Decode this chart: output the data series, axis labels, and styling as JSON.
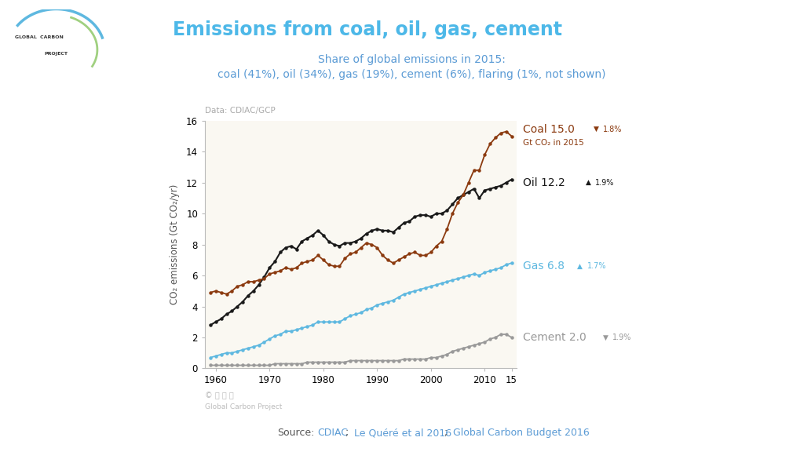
{
  "title": "Emissions from coal, oil, gas, cement",
  "subtitle_line1": "Share of global emissions in 2015:",
  "subtitle_line2": "coal (41%), oil (34%), gas (19%), cement (6%), flaring (1%, not shown)",
  "data_source_label": "Data: CDIAC/GCP",
  "ylabel": "CO₂ emissions (Gt CO₂/yr)",
  "bg_color": "#faf8f2",
  "title_color": "#4db8e8",
  "subtitle_color": "#5b9bd5",
  "coal_color": "#8B3A0F",
  "oil_color": "#1a1a1a",
  "gas_color": "#5eb8e0",
  "cement_color": "#999999",
  "source_label_color": "#555555",
  "source_link_color": "#5b9bd5",
  "xlim": [
    1958,
    2016
  ],
  "ylim": [
    0,
    16
  ],
  "yticks": [
    0,
    2,
    4,
    6,
    8,
    10,
    12,
    14,
    16
  ],
  "xticks": [
    1960,
    1970,
    1980,
    1990,
    2000,
    2010,
    2015
  ],
  "xtick_labels": [
    "1960",
    "1970",
    "1980",
    "1990",
    "2000",
    "2010",
    "15"
  ],
  "coal_data_years": [
    1959,
    1960,
    1961,
    1962,
    1963,
    1964,
    1965,
    1966,
    1967,
    1968,
    1969,
    1970,
    1971,
    1972,
    1973,
    1974,
    1975,
    1976,
    1977,
    1978,
    1979,
    1980,
    1981,
    1982,
    1983,
    1984,
    1985,
    1986,
    1987,
    1988,
    1989,
    1990,
    1991,
    1992,
    1993,
    1994,
    1995,
    1996,
    1997,
    1998,
    1999,
    2000,
    2001,
    2002,
    2003,
    2004,
    2005,
    2006,
    2007,
    2008,
    2009,
    2010,
    2011,
    2012,
    2013,
    2014,
    2015
  ],
  "coal_data_vals": [
    4.9,
    5.0,
    4.9,
    4.8,
    5.0,
    5.3,
    5.4,
    5.6,
    5.6,
    5.7,
    5.8,
    6.1,
    6.2,
    6.3,
    6.5,
    6.4,
    6.5,
    6.8,
    6.9,
    7.0,
    7.3,
    7.0,
    6.7,
    6.6,
    6.6,
    7.1,
    7.4,
    7.5,
    7.8,
    8.1,
    8.0,
    7.8,
    7.3,
    7.0,
    6.8,
    7.0,
    7.2,
    7.4,
    7.5,
    7.3,
    7.3,
    7.5,
    7.9,
    8.2,
    9.0,
    10.0,
    10.7,
    11.2,
    12.0,
    12.8,
    12.8,
    13.8,
    14.5,
    14.9,
    15.2,
    15.3,
    15.0
  ],
  "oil_data_years": [
    1959,
    1960,
    1961,
    1962,
    1963,
    1964,
    1965,
    1966,
    1967,
    1968,
    1969,
    1970,
    1971,
    1972,
    1973,
    1974,
    1975,
    1976,
    1977,
    1978,
    1979,
    1980,
    1981,
    1982,
    1983,
    1984,
    1985,
    1986,
    1987,
    1988,
    1989,
    1990,
    1991,
    1992,
    1993,
    1994,
    1995,
    1996,
    1997,
    1998,
    1999,
    2000,
    2001,
    2002,
    2003,
    2004,
    2005,
    2006,
    2007,
    2008,
    2009,
    2010,
    2011,
    2012,
    2013,
    2014,
    2015
  ],
  "oil_data_vals": [
    2.8,
    3.0,
    3.2,
    3.5,
    3.7,
    4.0,
    4.3,
    4.7,
    5.0,
    5.4,
    5.9,
    6.5,
    6.9,
    7.5,
    7.8,
    7.9,
    7.7,
    8.2,
    8.4,
    8.6,
    8.9,
    8.6,
    8.2,
    8.0,
    7.9,
    8.1,
    8.1,
    8.2,
    8.4,
    8.7,
    8.9,
    9.0,
    8.9,
    8.9,
    8.8,
    9.1,
    9.4,
    9.5,
    9.8,
    9.9,
    9.9,
    9.8,
    10.0,
    10.0,
    10.2,
    10.6,
    11.0,
    11.2,
    11.4,
    11.6,
    11.0,
    11.5,
    11.6,
    11.7,
    11.8,
    12.0,
    12.2
  ],
  "gas_data_years": [
    1959,
    1960,
    1961,
    1962,
    1963,
    1964,
    1965,
    1966,
    1967,
    1968,
    1969,
    1970,
    1971,
    1972,
    1973,
    1974,
    1975,
    1976,
    1977,
    1978,
    1979,
    1980,
    1981,
    1982,
    1983,
    1984,
    1985,
    1986,
    1987,
    1988,
    1989,
    1990,
    1991,
    1992,
    1993,
    1994,
    1995,
    1996,
    1997,
    1998,
    1999,
    2000,
    2001,
    2002,
    2003,
    2004,
    2005,
    2006,
    2007,
    2008,
    2009,
    2010,
    2011,
    2012,
    2013,
    2014,
    2015
  ],
  "gas_data_vals": [
    0.7,
    0.8,
    0.9,
    1.0,
    1.0,
    1.1,
    1.2,
    1.3,
    1.4,
    1.5,
    1.7,
    1.9,
    2.1,
    2.2,
    2.4,
    2.4,
    2.5,
    2.6,
    2.7,
    2.8,
    3.0,
    3.0,
    3.0,
    3.0,
    3.0,
    3.2,
    3.4,
    3.5,
    3.6,
    3.8,
    3.9,
    4.1,
    4.2,
    4.3,
    4.4,
    4.6,
    4.8,
    4.9,
    5.0,
    5.1,
    5.2,
    5.3,
    5.4,
    5.5,
    5.6,
    5.7,
    5.8,
    5.9,
    6.0,
    6.1,
    6.0,
    6.2,
    6.3,
    6.4,
    6.5,
    6.7,
    6.8
  ],
  "cement_data_years": [
    1959,
    1960,
    1961,
    1962,
    1963,
    1964,
    1965,
    1966,
    1967,
    1968,
    1969,
    1970,
    1971,
    1972,
    1973,
    1974,
    1975,
    1976,
    1977,
    1978,
    1979,
    1980,
    1981,
    1982,
    1983,
    1984,
    1985,
    1986,
    1987,
    1988,
    1989,
    1990,
    1991,
    1992,
    1993,
    1994,
    1995,
    1996,
    1997,
    1998,
    1999,
    2000,
    2001,
    2002,
    2003,
    2004,
    2005,
    2006,
    2007,
    2008,
    2009,
    2010,
    2011,
    2012,
    2013,
    2014,
    2015
  ],
  "cement_data_vals": [
    0.2,
    0.2,
    0.2,
    0.2,
    0.2,
    0.2,
    0.2,
    0.2,
    0.2,
    0.2,
    0.2,
    0.2,
    0.3,
    0.3,
    0.3,
    0.3,
    0.3,
    0.3,
    0.4,
    0.4,
    0.4,
    0.4,
    0.4,
    0.4,
    0.4,
    0.4,
    0.5,
    0.5,
    0.5,
    0.5,
    0.5,
    0.5,
    0.5,
    0.5,
    0.5,
    0.5,
    0.6,
    0.6,
    0.6,
    0.6,
    0.6,
    0.7,
    0.7,
    0.8,
    0.9,
    1.1,
    1.2,
    1.3,
    1.4,
    1.5,
    1.6,
    1.7,
    1.9,
    2.0,
    2.2,
    2.2,
    2.0
  ]
}
